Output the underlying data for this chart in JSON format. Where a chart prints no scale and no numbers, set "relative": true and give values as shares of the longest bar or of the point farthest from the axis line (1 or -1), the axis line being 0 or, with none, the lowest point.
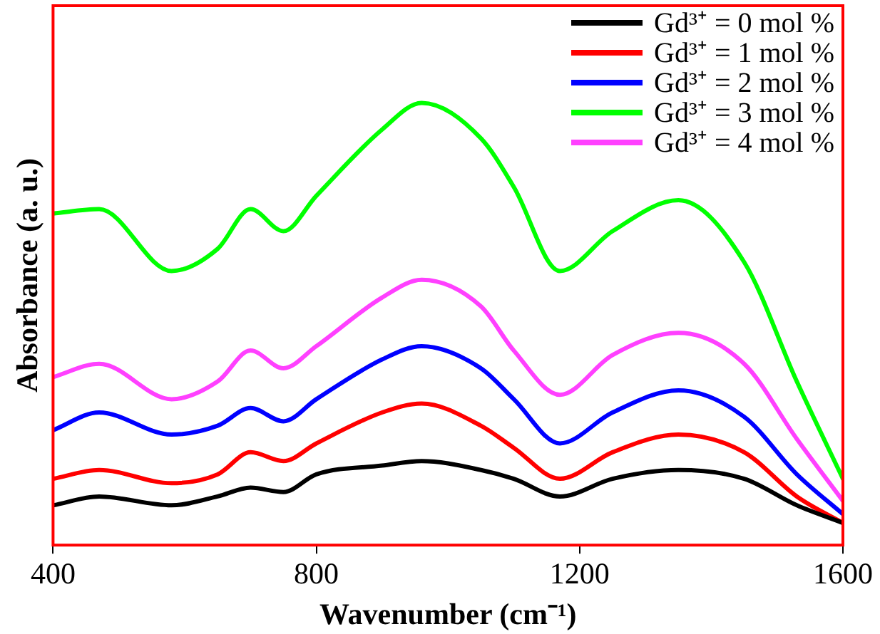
{
  "chart_data": {
    "type": "line",
    "xlabel": "Wavenumber (cm⁻¹)",
    "ylabel": "Absorbance (a. u.)",
    "relative": true,
    "x": [
      400,
      470,
      580,
      650,
      700,
      750,
      800,
      900,
      960,
      1050,
      1100,
      1170,
      1250,
      1350,
      1450,
      1530,
      1600
    ],
    "xlim": [
      400,
      1600
    ],
    "xticks": [
      400,
      800,
      1200,
      1600
    ],
    "grid": false,
    "legend": "top right",
    "marker": "none",
    "line_style": "solid",
    "series": [
      {
        "name": "Gd³⁺ = 0 mol %",
        "color": "#000000",
        "values": [
          0.09,
          0.11,
          0.09,
          0.11,
          0.13,
          0.12,
          0.16,
          0.18,
          0.19,
          0.17,
          0.15,
          0.11,
          0.15,
          0.17,
          0.15,
          0.09,
          0.05
        ]
      },
      {
        "name": "Gd³⁺ = 1 mol %",
        "color": "#ff0000",
        "values": [
          0.15,
          0.17,
          0.14,
          0.16,
          0.21,
          0.19,
          0.23,
          0.3,
          0.32,
          0.27,
          0.22,
          0.15,
          0.21,
          0.25,
          0.21,
          0.11,
          0.05
        ]
      },
      {
        "name": "Gd³⁺ = 2 mol %",
        "color": "#0000ff",
        "values": [
          0.26,
          0.3,
          0.25,
          0.27,
          0.31,
          0.28,
          0.33,
          0.42,
          0.45,
          0.4,
          0.33,
          0.23,
          0.3,
          0.35,
          0.29,
          0.16,
          0.07
        ]
      },
      {
        "name": "Gd³⁺ = 3 mol %",
        "color": "#00ff00",
        "values": [
          0.75,
          0.76,
          0.62,
          0.67,
          0.76,
          0.71,
          0.79,
          0.94,
          1.0,
          0.92,
          0.81,
          0.62,
          0.71,
          0.78,
          0.64,
          0.37,
          0.15
        ]
      },
      {
        "name": "Gd³⁺ = 4 mol %",
        "color": "#ff40ff",
        "values": [
          0.38,
          0.41,
          0.33,
          0.37,
          0.44,
          0.4,
          0.45,
          0.56,
          0.6,
          0.54,
          0.44,
          0.34,
          0.43,
          0.48,
          0.41,
          0.24,
          0.1
        ]
      }
    ]
  }
}
